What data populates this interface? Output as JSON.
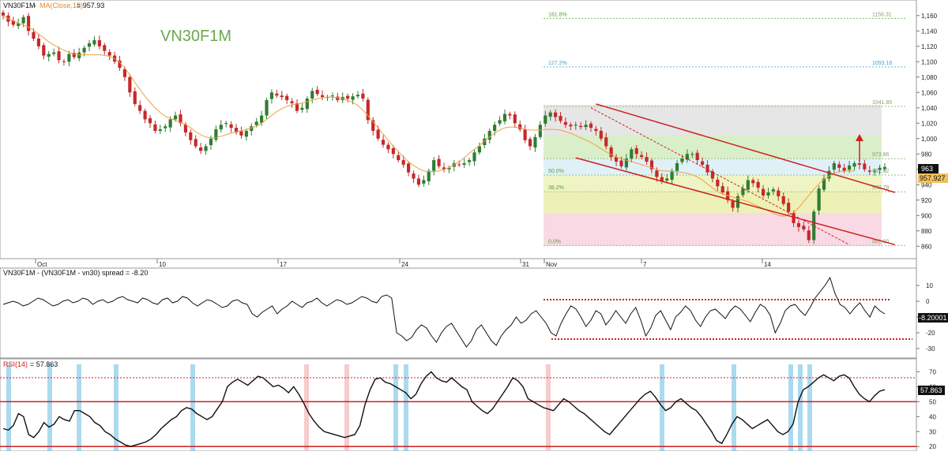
{
  "colors": {
    "up": "#2e7d32",
    "down": "#c62828",
    "ma": "#f0a040",
    "line": "#111111",
    "channel": "#cc2222",
    "rsi_band_blue": "#87cbe8",
    "rsi_band_pink": "#f5c6c6",
    "price_box": "#111111",
    "ma_box": "#f0c060"
  },
  "header": {
    "symbol": "VN30F1M",
    "ma_label": "MA(Close,15)",
    "ma_value": "= 957.93"
  },
  "watermark": "VN30F1M",
  "price_panel": {
    "y_ticks": [
      "1,160",
      "1,140",
      "1,120",
      "1,100",
      "1,080",
      "1,060",
      "1,040",
      "1,020",
      "1,000",
      "980",
      "960",
      "940",
      "920",
      "900",
      "880",
      "860"
    ],
    "x_labels": [
      "Oct",
      "10",
      "17",
      "24",
      "31",
      "Nov",
      "7",
      "14"
    ],
    "last_price": "963",
    "ma_value_box": "957.927",
    "fib_levels": [
      {
        "label_left": "161.8%",
        "label_right": "1156.31"
      },
      {
        "label_left": "127.2%",
        "label_right": "1093.18"
      },
      {
        "label_left": "",
        "label_right": "1041.85"
      },
      {
        "label_left": "",
        "label_right": "973.86"
      },
      {
        "label_left": "50.0%",
        "label_right": "952.52"
      },
      {
        "label_left": "38.2%",
        "label_right": "930.79"
      },
      {
        "label_left": "0.0%",
        "label_right": "861.00"
      }
    ]
  },
  "spread_panel": {
    "title": "VN30F1M - (VN30F1M - vn30) spread = -8.20",
    "y_ticks": [
      "10",
      "0",
      "-10",
      "-20",
      "-30"
    ],
    "last_value": "-8.20001"
  },
  "rsi_panel": {
    "title_name": "RSI(14)",
    "title_value": "= 57.863",
    "y_ticks": [
      "70",
      "60",
      "50",
      "40",
      "30",
      "20"
    ],
    "last_value": "57.863"
  },
  "chart_data": [
    {
      "type": "candlestick",
      "title": "VN30F1M",
      "ylim": [
        850,
        1170
      ],
      "close": [
        1160,
        1152,
        1148,
        1150,
        1158,
        1140,
        1130,
        1120,
        1108,
        1110,
        1112,
        1102,
        1100,
        1110,
        1106,
        1112,
        1118,
        1124,
        1128,
        1120,
        1114,
        1108,
        1100,
        1092,
        1080,
        1060,
        1045,
        1036,
        1025,
        1020,
        1010,
        1012,
        1016,
        1025,
        1030,
        1020,
        1008,
        998,
        990,
        984,
        990,
        1000,
        1012,
        1018,
        1020,
        1014,
        1008,
        1004,
        1010,
        1016,
        1022,
        1030,
        1050,
        1060,
        1056,
        1054,
        1050,
        1046,
        1036,
        1040,
        1052,
        1062,
        1058,
        1054,
        1054,
        1056,
        1050,
        1054,
        1052,
        1055,
        1057,
        1052,
        1024,
        1010,
        1000,
        992,
        986,
        980,
        972,
        966,
        956,
        948,
        940,
        946,
        958,
        972,
        964,
        960,
        962,
        968,
        966,
        968,
        972,
        982,
        990,
        1000,
        1010,
        1018,
        1024,
        1032,
        1030,
        1020,
        1012,
        998,
        990,
        1002,
        1018,
        1030,
        1034,
        1028,
        1023,
        1018,
        1016,
        1018,
        1015,
        1018,
        1014,
        1010,
        1000,
        990,
        976,
        970,
        964,
        974,
        986,
        980,
        976,
        970,
        960,
        950,
        944,
        948,
        958,
        968,
        974,
        980,
        980,
        972,
        966,
        956,
        948,
        938,
        930,
        920,
        910,
        925,
        935,
        946,
        942,
        936,
        926,
        930,
        934,
        925,
        915,
        905,
        890,
        885,
        882,
        868,
        905,
        935,
        948,
        958,
        968,
        962,
        958,
        965,
        968,
        966,
        960,
        957,
        958,
        962,
        963
      ],
      "ma15": [
        1160,
        1156,
        1153,
        1150,
        1148,
        1145,
        1141,
        1136,
        1131,
        1126,
        1122,
        1118,
        1115,
        1112,
        1110,
        1109,
        1109,
        1109,
        1109,
        1109,
        1108,
        1107,
        1104,
        1099,
        1092,
        1083,
        1073,
        1064,
        1055,
        1047,
        1040,
        1034,
        1029,
        1026,
        1024,
        1021,
        1018,
        1014,
        1009,
        1005,
        1002,
        1001,
        1001,
        1003,
        1005,
        1007,
        1009,
        1010,
        1012,
        1014,
        1016,
        1020,
        1025,
        1030,
        1035,
        1039,
        1042,
        1044,
        1045,
        1046,
        1048,
        1050,
        1052,
        1053,
        1054,
        1054,
        1053,
        1052,
        1050,
        1047,
        1043,
        1037,
        1030,
        1022,
        1014,
        1006,
        998,
        990,
        983,
        976,
        970,
        965,
        961,
        958,
        957,
        957,
        958,
        960,
        962,
        966,
        970,
        975,
        981,
        986,
        991,
        997,
        1002,
        1007,
        1011,
        1014,
        1015,
        1015,
        1014,
        1012,
        1011,
        1011,
        1011,
        1012,
        1012,
        1012,
        1011,
        1009,
        1007,
        1004,
        1001,
        998,
        995,
        991,
        987,
        983,
        979,
        976,
        974,
        972,
        970,
        968,
        966,
        964,
        962,
        960,
        958,
        958,
        957,
        957,
        956,
        955,
        953,
        950,
        946,
        941,
        936,
        931,
        928,
        926,
        924,
        922,
        920,
        918,
        915,
        912,
        909,
        906,
        903,
        900,
        899,
        900,
        904,
        910,
        918,
        926,
        934,
        941,
        947,
        951,
        955,
        957,
        958,
        958,
        958
      ],
      "channel_upper": {
        "start": {
          "x_index": 117,
          "y": 1045
        },
        "end": {
          "x_index": 176,
          "y": 930
        }
      },
      "channel_lower": {
        "start": {
          "x_index": 113,
          "y": 975
        },
        "end": {
          "x_index": 176,
          "y": 862
        }
      },
      "fibonacci": [
        {
          "ratio": "161.8%",
          "price": 1156.31
        },
        {
          "ratio": "127.2%",
          "price": 1093.18
        },
        {
          "ratio": "",
          "price": 1041.85
        },
        {
          "ratio": "",
          "price": 973.86
        },
        {
          "ratio": "50.0%",
          "price": 952.52
        },
        {
          "ratio": "38.2%",
          "price": 930.79
        },
        {
          "ratio": "0.0%",
          "price": 861.0
        }
      ]
    },
    {
      "type": "line",
      "title": "VN30F1M - (VN30F1M - vn30) spread = -8.20",
      "ylim": [
        -35,
        15
      ],
      "values": [
        -2,
        -1,
        0,
        -1,
        -3,
        -2,
        0,
        2,
        1,
        -1,
        -3,
        -2,
        0,
        1,
        -1,
        0,
        2,
        1,
        -2,
        0,
        1,
        -1,
        0,
        2,
        3,
        1,
        0,
        -1,
        2,
        1,
        -1,
        -2,
        1,
        2,
        -1,
        0,
        3,
        2,
        -1,
        -3,
        -1,
        1,
        0,
        -2,
        -4,
        -3,
        0,
        1,
        -1,
        -2,
        -8,
        -10,
        -7,
        -5,
        -3,
        -8,
        -5,
        -3,
        0,
        -2,
        -4,
        -1,
        0,
        2,
        -1,
        -3,
        -1,
        1,
        0,
        -2,
        -1,
        1,
        3,
        2,
        0,
        -1,
        3,
        4,
        2,
        -20,
        -22,
        -25,
        -23,
        -18,
        -15,
        -17,
        -22,
        -26,
        -20,
        -16,
        -14,
        -19,
        -24,
        -29,
        -25,
        -18,
        -15,
        -20,
        -25,
        -28,
        -22,
        -18,
        -15,
        -10,
        -14,
        -12,
        -8,
        -6,
        -10,
        -14,
        -20,
        -22,
        -14,
        -8,
        -3,
        -5,
        -10,
        -16,
        -12,
        -6,
        -8,
        -15,
        -11,
        -6,
        -10,
        -14,
        -8,
        -4,
        -12,
        -22,
        -17,
        -9,
        -6,
        -12,
        -18,
        -10,
        -7,
        -3,
        -6,
        -12,
        -16,
        -10,
        -6,
        -5,
        -8,
        -11,
        -6,
        -3,
        -5,
        -9,
        -13,
        -7,
        -2,
        -4,
        -9,
        -20,
        -14,
        -6,
        -3,
        -2,
        -6,
        -9,
        -4,
        2,
        6,
        10,
        15,
        5,
        -2,
        -4,
        -8,
        -4,
        -1,
        -6,
        -10,
        -3,
        -6,
        -8
      ],
      "bands": [
        {
          "level": 1,
          "style": "dashed red"
        },
        {
          "level": -24,
          "style": "dashed red"
        }
      ]
    },
    {
      "type": "line",
      "title": "RSI(14) = 57.863",
      "ylim": [
        18,
        75
      ],
      "values": [
        32,
        31,
        34,
        42,
        40,
        28,
        26,
        30,
        36,
        33,
        35,
        40,
        38,
        37,
        44,
        44,
        42,
        40,
        36,
        34,
        30,
        28,
        25,
        23,
        21,
        20,
        21,
        22,
        23,
        25,
        28,
        32,
        35,
        38,
        40,
        44,
        46,
        45,
        42,
        40,
        38,
        40,
        45,
        50,
        60,
        63,
        65,
        63,
        61,
        64,
        67,
        66,
        63,
        60,
        61,
        59,
        56,
        60,
        55,
        49,
        42,
        37,
        33,
        30,
        29,
        28,
        27,
        26,
        27,
        28,
        34,
        48,
        58,
        65,
        66,
        63,
        62,
        60,
        58,
        56,
        52,
        55,
        62,
        67,
        70,
        66,
        64,
        63,
        66,
        63,
        60,
        58,
        50,
        47,
        44,
        42,
        45,
        50,
        55,
        60,
        66,
        64,
        60,
        52,
        50,
        48,
        46,
        45,
        44,
        48,
        52,
        50,
        47,
        44,
        42,
        39,
        36,
        33,
        30,
        28,
        32,
        36,
        40,
        44,
        48,
        52,
        55,
        57,
        53,
        48,
        44,
        46,
        50,
        52,
        49,
        46,
        44,
        40,
        35,
        30,
        24,
        22,
        28,
        35,
        40,
        38,
        35,
        32,
        34,
        36,
        38,
        34,
        30,
        28,
        30,
        35,
        50,
        58,
        60,
        63,
        66,
        68,
        66,
        64,
        67,
        68,
        66,
        60,
        55,
        52,
        50,
        54,
        57,
        58
      ],
      "levels": [
        {
          "value": 66,
          "style": "dashed red"
        },
        {
          "value": 50,
          "style": "solid red"
        },
        {
          "value": 20,
          "style": "solid red"
        }
      ]
    }
  ]
}
